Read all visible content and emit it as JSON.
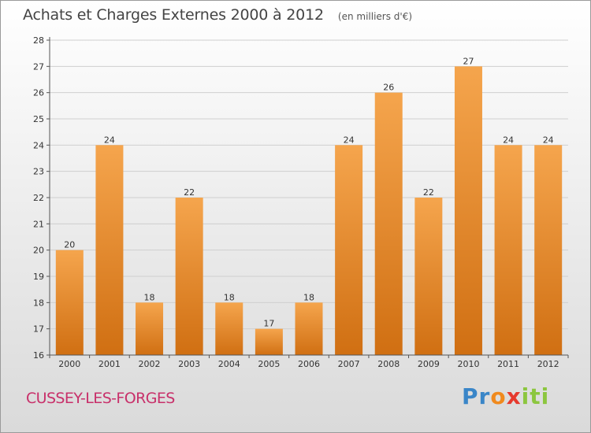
{
  "chart_data": {
    "type": "bar",
    "title": "Achats et Charges Externes 2000 à 2012",
    "unit": "(en milliers d'€)",
    "categories": [
      "2000",
      "2001",
      "2002",
      "2003",
      "2004",
      "2005",
      "2006",
      "2007",
      "2008",
      "2009",
      "2010",
      "2011",
      "2012"
    ],
    "values": [
      20,
      24,
      18,
      22,
      18,
      17,
      18,
      24,
      26,
      22,
      27,
      24,
      24
    ],
    "ylim": [
      16,
      28
    ],
    "yticks": [
      16,
      17,
      18,
      19,
      20,
      21,
      22,
      23,
      24,
      25,
      26,
      27,
      28
    ],
    "grid": "horizontal",
    "bar_color_top": "#f5a54d",
    "bar_color_bottom": "#d06f12"
  },
  "footer": {
    "town": "CUSSEY-LES-FORGES",
    "logo_letters": [
      "P",
      "r",
      "o",
      "x",
      "i",
      "t",
      "i"
    ],
    "logo_colors": [
      "#3a86c8",
      "#3a86c8",
      "#f08a1e",
      "#e63a2e",
      "#8cc63f",
      "#8cc63f",
      "#8cc63f"
    ]
  }
}
